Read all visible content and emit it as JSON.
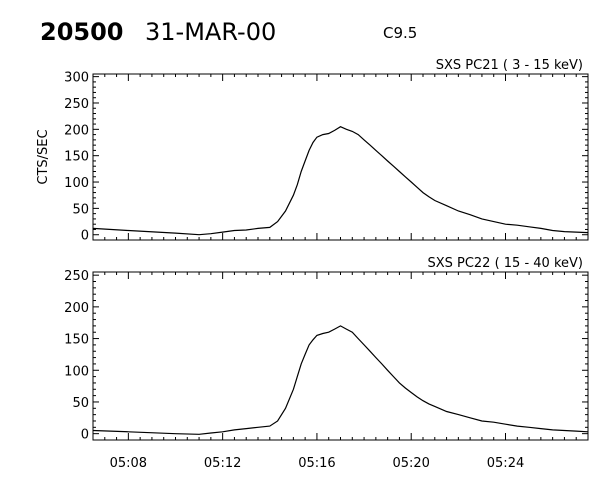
{
  "header": {
    "event_id": "20500",
    "date": "31-MAR-00",
    "flare_class": "C9.5"
  },
  "chart_data": [
    {
      "type": "line",
      "title": "SXS PC21  (  3 - 15 keV)",
      "ylabel": "CTS/SEC",
      "xlim": [
        "05:06:30",
        "05:27:30"
      ],
      "ylim": [
        -10,
        305
      ],
      "yticks": [
        0,
        50,
        100,
        150,
        200,
        250,
        300
      ],
      "xticks": [
        "05:08",
        "05:12",
        "05:16",
        "05:20",
        "05:24"
      ],
      "show_xtick_labels": false,
      "grid": false,
      "series": [
        {
          "x": [
            "05:06:30",
            "05:08:00",
            "05:10:00",
            "05:11:00",
            "05:11:30",
            "05:12:00",
            "05:12:30",
            "05:13:00",
            "05:13:30",
            "05:14:00",
            "05:14:20",
            "05:14:40",
            "05:15:00",
            "05:15:10",
            "05:15:20",
            "05:15:30",
            "05:15:40",
            "05:15:50",
            "05:16:00",
            "05:16:15",
            "05:16:30",
            "05:16:45",
            "05:17:00",
            "05:17:15",
            "05:17:30",
            "05:17:45",
            "05:18:00",
            "05:18:15",
            "05:18:30",
            "05:18:45",
            "05:19:00",
            "05:19:15",
            "05:19:30",
            "05:19:45",
            "05:20:00",
            "05:20:15",
            "05:20:30",
            "05:20:45",
            "05:21:00",
            "05:21:30",
            "05:22:00",
            "05:22:30",
            "05:23:00",
            "05:23:30",
            "05:24:00",
            "05:24:30",
            "05:25:00",
            "05:25:30",
            "05:26:00",
            "05:26:30",
            "05:27:00",
            "05:27:30"
          ],
          "y": [
            12,
            8,
            3,
            0,
            2,
            5,
            8,
            9,
            12,
            14,
            25,
            45,
            75,
            95,
            120,
            140,
            160,
            175,
            185,
            190,
            192,
            198,
            205,
            200,
            196,
            190,
            180,
            170,
            160,
            150,
            140,
            130,
            120,
            110,
            100,
            90,
            80,
            72,
            65,
            55,
            45,
            38,
            30,
            25,
            20,
            18,
            15,
            12,
            8,
            6,
            5,
            4
          ]
        }
      ]
    },
    {
      "type": "line",
      "title": "SXS PC22  ( 15 - 40 keV)",
      "ylabel": "",
      "xlim": [
        "05:06:30",
        "05:27:30"
      ],
      "ylim": [
        -10,
        255
      ],
      "yticks": [
        0,
        50,
        100,
        150,
        200,
        250
      ],
      "xticks": [
        "05:08",
        "05:12",
        "05:16",
        "05:20",
        "05:24"
      ],
      "show_xtick_labels": true,
      "grid": false,
      "series": [
        {
          "x": [
            "05:06:30",
            "05:08:00",
            "05:10:00",
            "05:11:00",
            "05:11:30",
            "05:12:00",
            "05:12:30",
            "05:13:00",
            "05:13:30",
            "05:14:00",
            "05:14:20",
            "05:14:40",
            "05:15:00",
            "05:15:10",
            "05:15:20",
            "05:15:30",
            "05:15:40",
            "05:15:50",
            "05:16:00",
            "05:16:15",
            "05:16:30",
            "05:16:45",
            "05:17:00",
            "05:17:15",
            "05:17:30",
            "05:17:45",
            "05:18:00",
            "05:18:15",
            "05:18:30",
            "05:18:45",
            "05:19:00",
            "05:19:15",
            "05:19:30",
            "05:19:45",
            "05:20:00",
            "05:20:15",
            "05:20:30",
            "05:20:45",
            "05:21:00",
            "05:21:30",
            "05:22:00",
            "05:22:30",
            "05:23:00",
            "05:23:30",
            "05:24:00",
            "05:24:30",
            "05:25:00",
            "05:25:30",
            "05:26:00",
            "05:26:30",
            "05:27:00",
            "05:27:30"
          ],
          "y": [
            5,
            3,
            0,
            -1,
            1,
            3,
            6,
            8,
            10,
            12,
            20,
            40,
            70,
            90,
            110,
            125,
            140,
            148,
            155,
            158,
            160,
            165,
            170,
            165,
            160,
            150,
            140,
            130,
            120,
            110,
            100,
            90,
            80,
            72,
            65,
            58,
            52,
            47,
            43,
            35,
            30,
            25,
            20,
            18,
            15,
            12,
            10,
            8,
            6,
            5,
            4,
            3
          ]
        }
      ]
    }
  ]
}
